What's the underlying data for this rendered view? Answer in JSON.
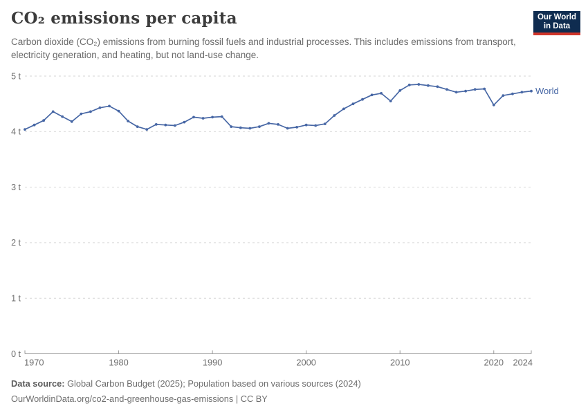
{
  "header": {
    "title": "CO₂ emissions per capita",
    "subtitle": "Carbon dioxide (CO₂) emissions from burning fossil fuels and industrial processes. This includes emissions from transport, electricity generation, and heating, but not land-use change.",
    "logo": {
      "line1": "Our World",
      "line2": "in Data",
      "bg_color": "#0f2c50",
      "accent_color": "#d0352a"
    }
  },
  "chart_data": {
    "type": "line",
    "title": "CO₂ emissions per capita",
    "xlabel": "",
    "ylabel": "",
    "xlim": [
      1970,
      2024
    ],
    "ylim": [
      0,
      5
    ],
    "grid": "horizontal-dashed",
    "legend_position": "end-of-line-label",
    "x_ticks": [
      1970,
      1980,
      1990,
      2000,
      2010,
      2020,
      2024
    ],
    "y_ticks": [
      0,
      1,
      2,
      3,
      4,
      5
    ],
    "y_tick_suffix": " t",
    "colors": {
      "grid": "#d6d6d6",
      "axis": "#9a9a9a",
      "tick_label": "#6e6e6e"
    },
    "series": [
      {
        "name": "World",
        "color": "#4767a5",
        "years": [
          1970,
          1971,
          1972,
          1973,
          1974,
          1975,
          1976,
          1977,
          1978,
          1979,
          1980,
          1981,
          1982,
          1983,
          1984,
          1985,
          1986,
          1987,
          1988,
          1989,
          1990,
          1991,
          1992,
          1993,
          1994,
          1995,
          1996,
          1997,
          1998,
          1999,
          2000,
          2001,
          2002,
          2003,
          2004,
          2005,
          2006,
          2007,
          2008,
          2009,
          2010,
          2011,
          2012,
          2013,
          2014,
          2015,
          2016,
          2017,
          2018,
          2019,
          2020,
          2021,
          2022,
          2023,
          2024
        ],
        "values": [
          4.04,
          4.12,
          4.2,
          4.36,
          4.27,
          4.18,
          4.32,
          4.36,
          4.43,
          4.46,
          4.37,
          4.19,
          4.09,
          4.04,
          4.13,
          4.12,
          4.11,
          4.17,
          4.26,
          4.24,
          4.26,
          4.27,
          4.09,
          4.07,
          4.06,
          4.09,
          4.15,
          4.13,
          4.06,
          4.08,
          4.12,
          4.11,
          4.14,
          4.29,
          4.41,
          4.5,
          4.58,
          4.66,
          4.69,
          4.55,
          4.74,
          4.84,
          4.85,
          4.83,
          4.81,
          4.76,
          4.71,
          4.73,
          4.76,
          4.77,
          4.48,
          4.65,
          4.68,
          4.71,
          4.73
        ]
      }
    ]
  },
  "footer": {
    "source_label": "Data source:",
    "source_text": "Global Carbon Budget (2025); Population based on various sources (2024)",
    "citation": "OurWorldinData.org/co2-and-greenhouse-gas-emissions | CC BY"
  }
}
